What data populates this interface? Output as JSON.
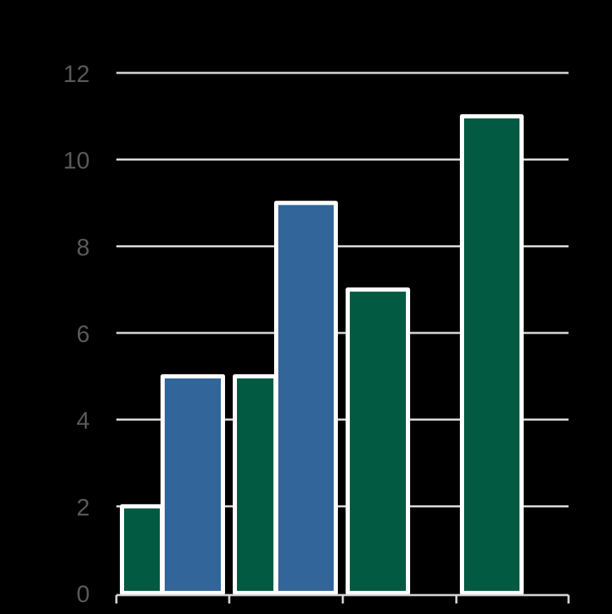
{
  "chart_data": {
    "type": "bar",
    "title": "",
    "xlabel": "",
    "ylabel": "",
    "ylim": [
      0,
      12
    ],
    "yticks": [
      0,
      2,
      4,
      6,
      8,
      10,
      12
    ],
    "grid": true,
    "legend": "none",
    "bars": [
      {
        "group": 0,
        "series": "green",
        "value": 2
      },
      {
        "group": 0,
        "series": "blue",
        "value": 5
      },
      {
        "group": 1,
        "series": "green",
        "value": 5
      },
      {
        "group": 1,
        "series": "blue",
        "value": 9
      },
      {
        "group": 2,
        "series": "green",
        "value": 7
      },
      {
        "group": 3,
        "series": "green",
        "value": 11
      }
    ]
  },
  "colors": {
    "background": "#000000",
    "green": "#035a42",
    "blue": "#32659a",
    "bar_outline": "#ffffff",
    "grid": "#d9d9d9",
    "tick_label": "#595959"
  }
}
